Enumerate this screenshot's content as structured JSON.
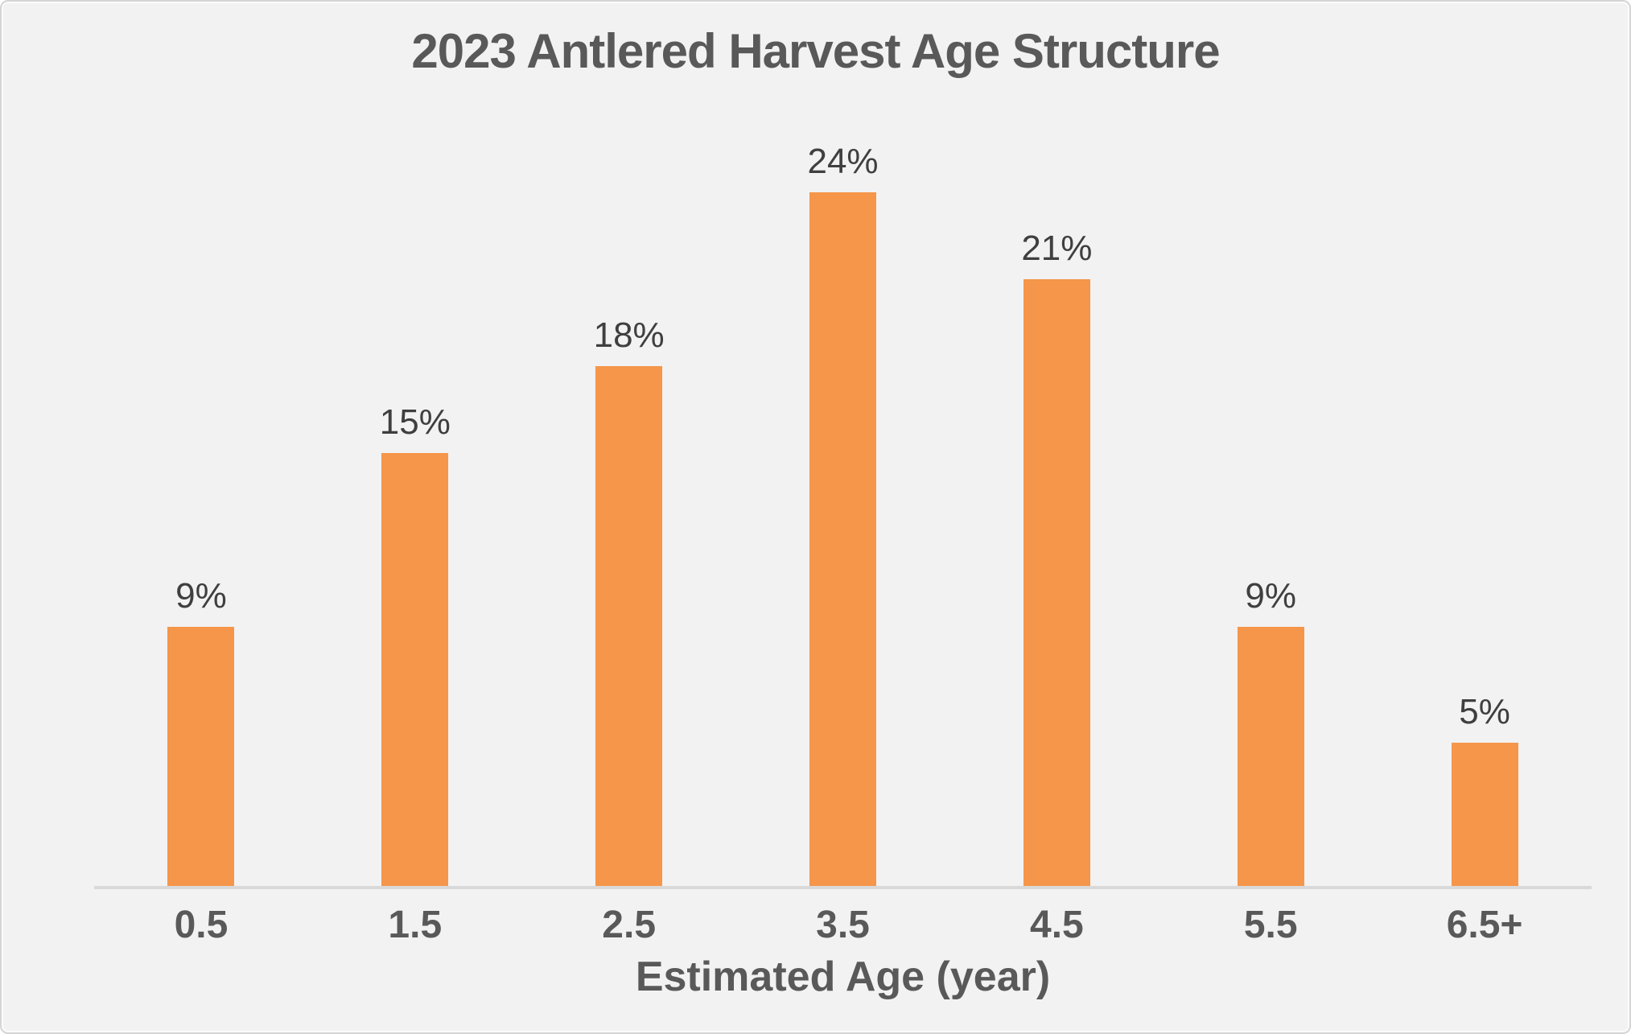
{
  "chart_data": {
    "type": "bar",
    "title": "2023 Antlered Harvest Age Structure",
    "xlabel": "Estimated Age (year)",
    "ylabel": "",
    "categories": [
      "0.5",
      "1.5",
      "2.5",
      "3.5",
      "4.5",
      "5.5",
      "6.5+"
    ],
    "values": [
      9,
      15,
      18,
      24,
      21,
      9,
      5
    ],
    "data_labels": [
      "9%",
      "15%",
      "18%",
      "24%",
      "21%",
      "9%",
      "5%"
    ],
    "ylim": [
      0,
      25
    ],
    "grid": false,
    "legend": false,
    "colors": {
      "bar": "#F5964A",
      "background": "#F2F2F2",
      "title_text": "#595959",
      "data_label_text": "#3F3F3F",
      "axis_text": "#595959",
      "axis_line": "#D9D9D9"
    }
  }
}
